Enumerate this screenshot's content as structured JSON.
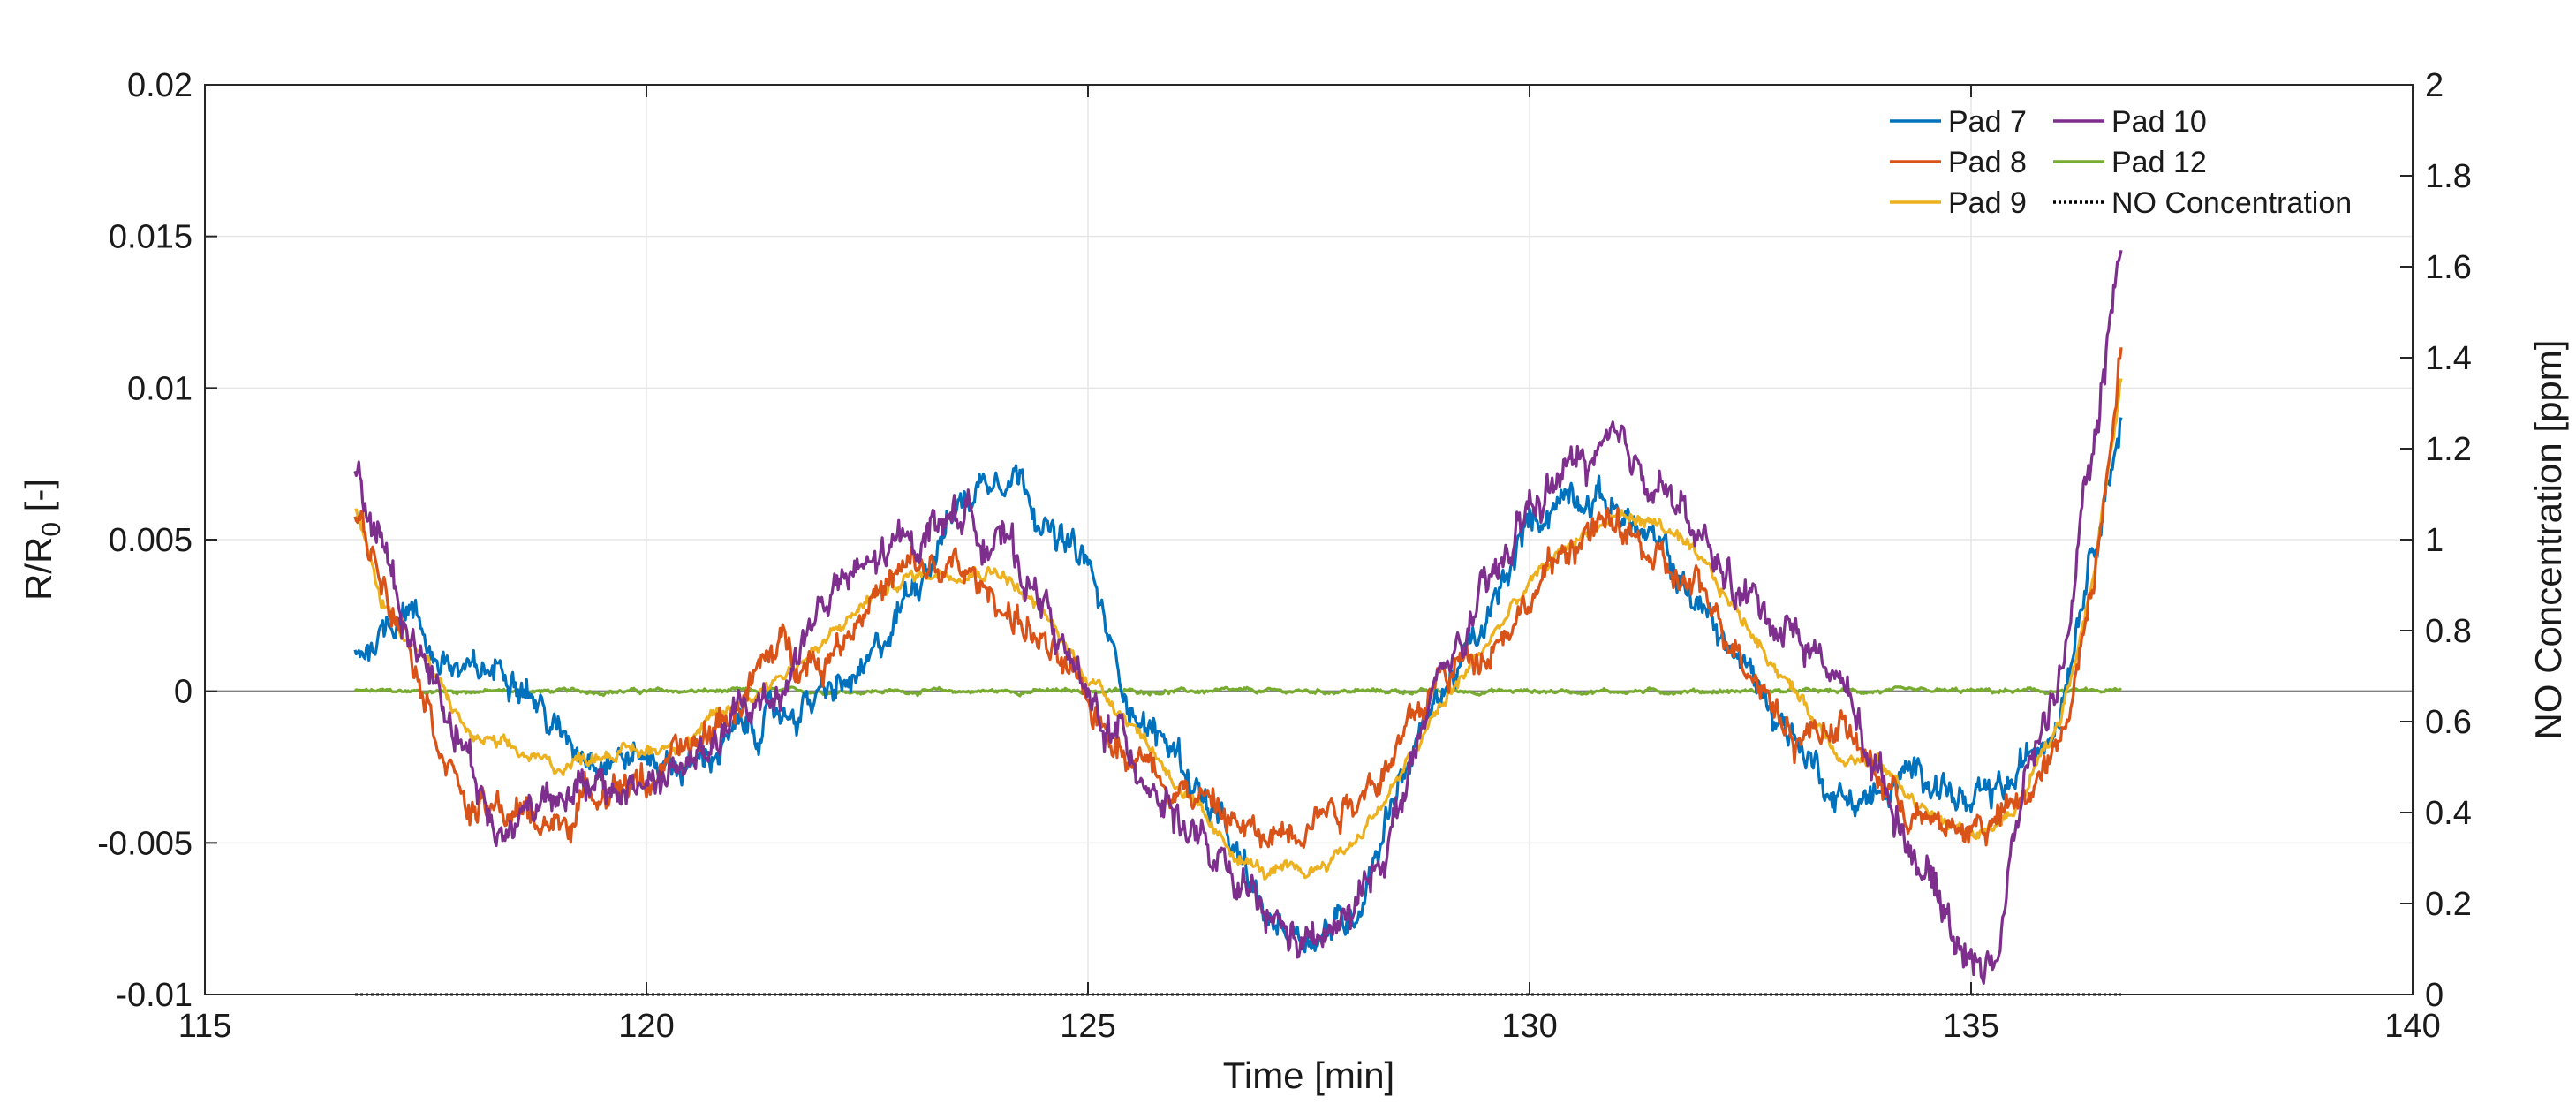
{
  "chart_data": {
    "type": "line",
    "xlabel": "Time [min]",
    "ylabel_left": {
      "main": "R/R",
      "sub": "0",
      "rest": " [-]"
    },
    "ylabel_right": "NO Concentration [ppm]",
    "xlim": [
      115,
      140
    ],
    "ylim_left": [
      -0.01,
      0.02
    ],
    "ylim_right": [
      0,
      2
    ],
    "grid": true,
    "legend_position": "top-right",
    "x_ticks": [
      115,
      120,
      125,
      130,
      135,
      140
    ],
    "x_tick_labels": [
      "115",
      "120",
      "125",
      "130",
      "135",
      "140"
    ],
    "y_left_ticks": [
      -0.01,
      -0.005,
      0,
      0.005,
      0.01,
      0.015,
      0.02
    ],
    "y_left_tick_labels": [
      "-0.01",
      "-0.005",
      "0",
      "0.005",
      "0.01",
      "0.015",
      "0.02"
    ],
    "y_right_ticks": [
      0,
      0.2,
      0.4,
      0.6,
      0.8,
      1,
      1.2,
      1.4,
      1.6,
      1.8,
      2
    ],
    "y_right_tick_labels": [
      "0",
      "0.2",
      "0.4",
      "0.6",
      "0.8",
      "1",
      "1.2",
      "1.4",
      "1.6",
      "1.8",
      "2"
    ],
    "series": [
      {
        "name": "Pad 7",
        "color": "#0072BD",
        "axis": "left",
        "noise": 0.0006,
        "points": [
          [
            116.7,
            0.0012
          ],
          [
            117,
            0.002
          ],
          [
            117.3,
            0.003
          ],
          [
            117.6,
            0.0012
          ],
          [
            118,
            0.0004
          ],
          [
            118.5,
            0.001
          ],
          [
            119,
            -0.0015
          ],
          [
            119.5,
            -0.002
          ],
          [
            120,
            -0.0022
          ],
          [
            120.5,
            -0.0025
          ],
          [
            121,
            -0.0015
          ],
          [
            121.5,
            -0.0008
          ],
          [
            122,
            -0.0002
          ],
          [
            122.5,
            0.0005
          ],
          [
            123,
            0.0035
          ],
          [
            123.5,
            0.006
          ],
          [
            124,
            0.0075
          ],
          [
            124.3,
            0.007
          ],
          [
            124.6,
            0.005
          ],
          [
            125,
            0.0042
          ],
          [
            125.3,
            0.001
          ],
          [
            125.6,
            -0.001
          ],
          [
            126,
            -0.002
          ],
          [
            126.5,
            -0.0045
          ],
          [
            127,
            -0.0075
          ],
          [
            127.5,
            -0.008
          ],
          [
            128,
            -0.0075
          ],
          [
            128.5,
            -0.003
          ],
          [
            129,
            0
          ],
          [
            129.5,
            0.002
          ],
          [
            130,
            0.0055
          ],
          [
            130.5,
            0.0068
          ],
          [
            131,
            0.006
          ],
          [
            131.5,
            0.0045
          ],
          [
            132,
            0.0025
          ],
          [
            132.5,
            0.0005
          ],
          [
            133,
            -0.0015
          ],
          [
            133.5,
            -0.0035
          ],
          [
            134,
            -0.0035
          ],
          [
            134.5,
            -0.0025
          ],
          [
            135,
            -0.004
          ],
          [
            135.5,
            -0.003
          ],
          [
            136,
            -0.0005
          ],
          [
            136.3,
            0.004
          ],
          [
            136.7,
            0.009
          ]
        ]
      },
      {
        "name": "Pad 8",
        "color": "#D95319",
        "axis": "left",
        "noise": 0.0006,
        "points": [
          [
            116.7,
            0.0058
          ],
          [
            117,
            0.004
          ],
          [
            117.3,
            0.002
          ],
          [
            117.6,
            -0.001
          ],
          [
            118,
            -0.004
          ],
          [
            118.5,
            -0.004
          ],
          [
            119,
            -0.0045
          ],
          [
            119.5,
            -0.003
          ],
          [
            120,
            -0.003
          ],
          [
            120.5,
            -0.002
          ],
          [
            121,
            -0.0005
          ],
          [
            121.5,
            0.0015
          ],
          [
            122,
            0.001
          ],
          [
            122.5,
            0.003
          ],
          [
            123,
            0.004
          ],
          [
            123.5,
            0.004
          ],
          [
            124,
            0.003
          ],
          [
            124.5,
            0.0015
          ],
          [
            125,
            -0.0005
          ],
          [
            125.5,
            -0.002
          ],
          [
            126,
            -0.003
          ],
          [
            126.5,
            -0.004
          ],
          [
            127,
            -0.005
          ],
          [
            127.5,
            -0.004
          ],
          [
            128,
            -0.0035
          ],
          [
            128.5,
            -0.002
          ],
          [
            129,
            0.0005
          ],
          [
            129.5,
            0.0015
          ],
          [
            130,
            0.003
          ],
          [
            130.5,
            0.005
          ],
          [
            131,
            0.0055
          ],
          [
            131.5,
            0.004
          ],
          [
            132,
            0.003
          ],
          [
            132.5,
            0.001
          ],
          [
            133,
            -0.0015
          ],
          [
            133.5,
            -0.001
          ],
          [
            134,
            -0.003
          ],
          [
            134.5,
            -0.0045
          ],
          [
            135,
            -0.0045
          ],
          [
            135.5,
            -0.004
          ],
          [
            136,
            -0.002
          ],
          [
            136.4,
            0.004
          ],
          [
            136.7,
            0.0118
          ]
        ]
      },
      {
        "name": "Pad 9",
        "color": "#EDB120",
        "axis": "left",
        "noise": 0.00025,
        "points": [
          [
            116.7,
            0.006
          ],
          [
            117,
            0.003
          ],
          [
            117.5,
            0.001
          ],
          [
            118,
            -0.0015
          ],
          [
            118.5,
            -0.002
          ],
          [
            119,
            -0.0025
          ],
          [
            119.5,
            -0.002
          ],
          [
            120,
            -0.002
          ],
          [
            120.5,
            -0.0015
          ],
          [
            121,
            -0.0005
          ],
          [
            121.5,
            0.0005
          ],
          [
            122,
            0.0015
          ],
          [
            122.5,
            0.003
          ],
          [
            123,
            0.0038
          ],
          [
            123.5,
            0.004
          ],
          [
            124,
            0.004
          ],
          [
            124.5,
            0.0025
          ],
          [
            125,
            0.0005
          ],
          [
            125.5,
            -0.001
          ],
          [
            126,
            -0.003
          ],
          [
            126.5,
            -0.005
          ],
          [
            127,
            -0.006
          ],
          [
            127.5,
            -0.006
          ],
          [
            128,
            -0.005
          ],
          [
            128.5,
            -0.003
          ],
          [
            129,
            -0.0005
          ],
          [
            129.5,
            0.0015
          ],
          [
            130,
            0.0035
          ],
          [
            130.5,
            0.005
          ],
          [
            131,
            0.0058
          ],
          [
            131.5,
            0.0055
          ],
          [
            132,
            0.004
          ],
          [
            132.5,
            0.002
          ],
          [
            133,
            0
          ],
          [
            133.5,
            -0.002
          ],
          [
            134,
            -0.0025
          ],
          [
            134.5,
            -0.004
          ],
          [
            135,
            -0.0048
          ],
          [
            135.5,
            -0.004
          ],
          [
            136,
            -0.001
          ],
          [
            136.4,
            0.004
          ],
          [
            136.7,
            0.0103
          ]
        ]
      },
      {
        "name": "Pad 10",
        "color": "#7E2F8E",
        "axis": "left",
        "noise": 0.0007,
        "points": [
          [
            116.7,
            0.007
          ],
          [
            117,
            0.005
          ],
          [
            117.3,
            0.002
          ],
          [
            117.6,
            0.0005
          ],
          [
            118,
            -0.002
          ],
          [
            118.3,
            -0.005
          ],
          [
            118.6,
            -0.004
          ],
          [
            119,
            -0.003
          ],
          [
            119.5,
            -0.0035
          ],
          [
            120,
            -0.003
          ],
          [
            120.5,
            -0.0025
          ],
          [
            121,
            -0.001
          ],
          [
            121.5,
            0.0
          ],
          [
            122,
            0.003
          ],
          [
            122.5,
            0.004
          ],
          [
            123,
            0.005
          ],
          [
            123.5,
            0.006
          ],
          [
            124,
            0.005
          ],
          [
            124.5,
            0.003
          ],
          [
            125,
            -0.0005
          ],
          [
            125.5,
            -0.002
          ],
          [
            126,
            -0.004
          ],
          [
            126.5,
            -0.006
          ],
          [
            127,
            -0.0075
          ],
          [
            127.5,
            -0.0085
          ],
          [
            128,
            -0.0075
          ],
          [
            128.5,
            -0.004
          ],
          [
            129,
            0.0005
          ],
          [
            129.5,
            0.003
          ],
          [
            130,
            0.006
          ],
          [
            130.5,
            0.0075
          ],
          [
            131,
            0.0078
          ],
          [
            131.5,
            0.007
          ],
          [
            132,
            0.0045
          ],
          [
            132.5,
            0.003
          ],
          [
            133,
            0.002
          ],
          [
            133.5,
            0.0005
          ],
          [
            134,
            -0.003
          ],
          [
            134.5,
            -0.006
          ],
          [
            135,
            -0.009
          ],
          [
            135.3,
            -0.0085
          ],
          [
            135.6,
            -0.003
          ],
          [
            136,
            0.0005
          ],
          [
            136.3,
            0.006
          ],
          [
            136.7,
            0.015
          ]
        ]
      },
      {
        "name": "Pad 12",
        "color": "#77AC30",
        "axis": "left",
        "noise": 8e-05,
        "points": [
          [
            116.7,
            0
          ],
          [
            136.7,
            0
          ]
        ]
      },
      {
        "name": "NO Concentration",
        "color": "#000000",
        "axis": "right",
        "dotted": true,
        "noise": 0,
        "points": [
          [
            116.7,
            0
          ],
          [
            136.7,
            0
          ]
        ]
      }
    ]
  }
}
